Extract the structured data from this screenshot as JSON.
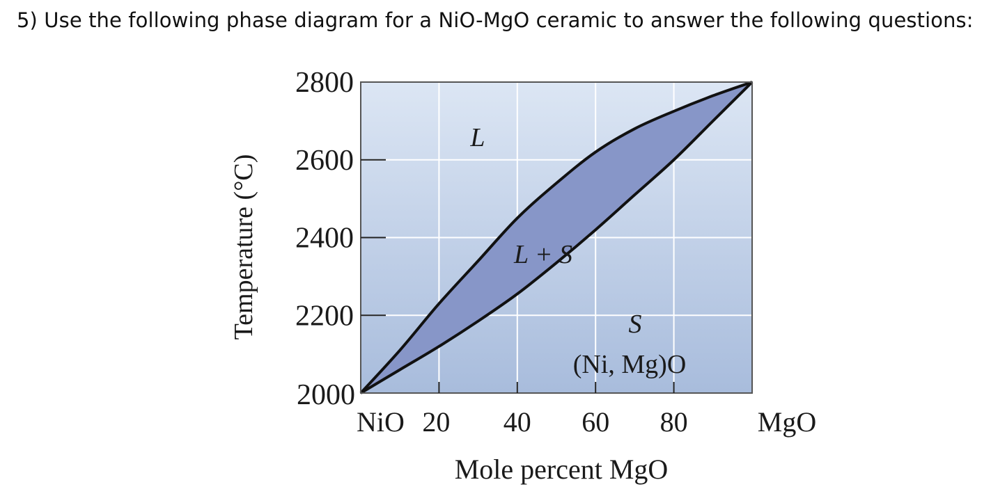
{
  "question": {
    "text": "5)  Use the following phase diagram for a NiO-MgO ceramic to answer the following questions:"
  },
  "diagram": {
    "y_axis": {
      "title": "Temperature (°C)",
      "ticks": [
        {
          "value": 2800,
          "label": "2800"
        },
        {
          "value": 2600,
          "label": "2600"
        },
        {
          "value": 2400,
          "label": "2400"
        },
        {
          "value": 2200,
          "label": "2200"
        },
        {
          "value": 2000,
          "label": "2000"
        }
      ],
      "range": [
        2000,
        2800
      ]
    },
    "x_axis": {
      "title": "Mole percent MgO",
      "range": [
        0,
        100
      ],
      "ticks": [
        {
          "value": 0,
          "label": "NiO"
        },
        {
          "value": 20,
          "label": "20"
        },
        {
          "value": 40,
          "label": "40"
        },
        {
          "value": 60,
          "label": "60"
        },
        {
          "value": 80,
          "label": "80"
        },
        {
          "value": 100,
          "label": "MgO"
        }
      ]
    },
    "regions": {
      "liquid": "L",
      "two_phase": "L + S",
      "solid": "S",
      "solid_formula": "(Ni, Mg)O"
    },
    "liquidus": [
      [
        0,
        2000
      ],
      [
        10,
        2110
      ],
      [
        20,
        2230
      ],
      [
        30,
        2340
      ],
      [
        40,
        2450
      ],
      [
        50,
        2540
      ],
      [
        60,
        2620
      ],
      [
        70,
        2680
      ],
      [
        80,
        2725
      ],
      [
        90,
        2765
      ],
      [
        100,
        2800
      ]
    ],
    "solidus": [
      [
        0,
        2000
      ],
      [
        10,
        2060
      ],
      [
        20,
        2120
      ],
      [
        30,
        2185
      ],
      [
        40,
        2255
      ],
      [
        50,
        2335
      ],
      [
        60,
        2420
      ],
      [
        70,
        2510
      ],
      [
        80,
        2600
      ],
      [
        90,
        2700
      ],
      [
        100,
        2800
      ]
    ],
    "colors": {
      "background_top": "#dce6f4",
      "background_bottom": "#a8bcdc",
      "two_phase_fill": "#8796c8",
      "curve": "#111111",
      "gridline": "#ffffff"
    }
  }
}
